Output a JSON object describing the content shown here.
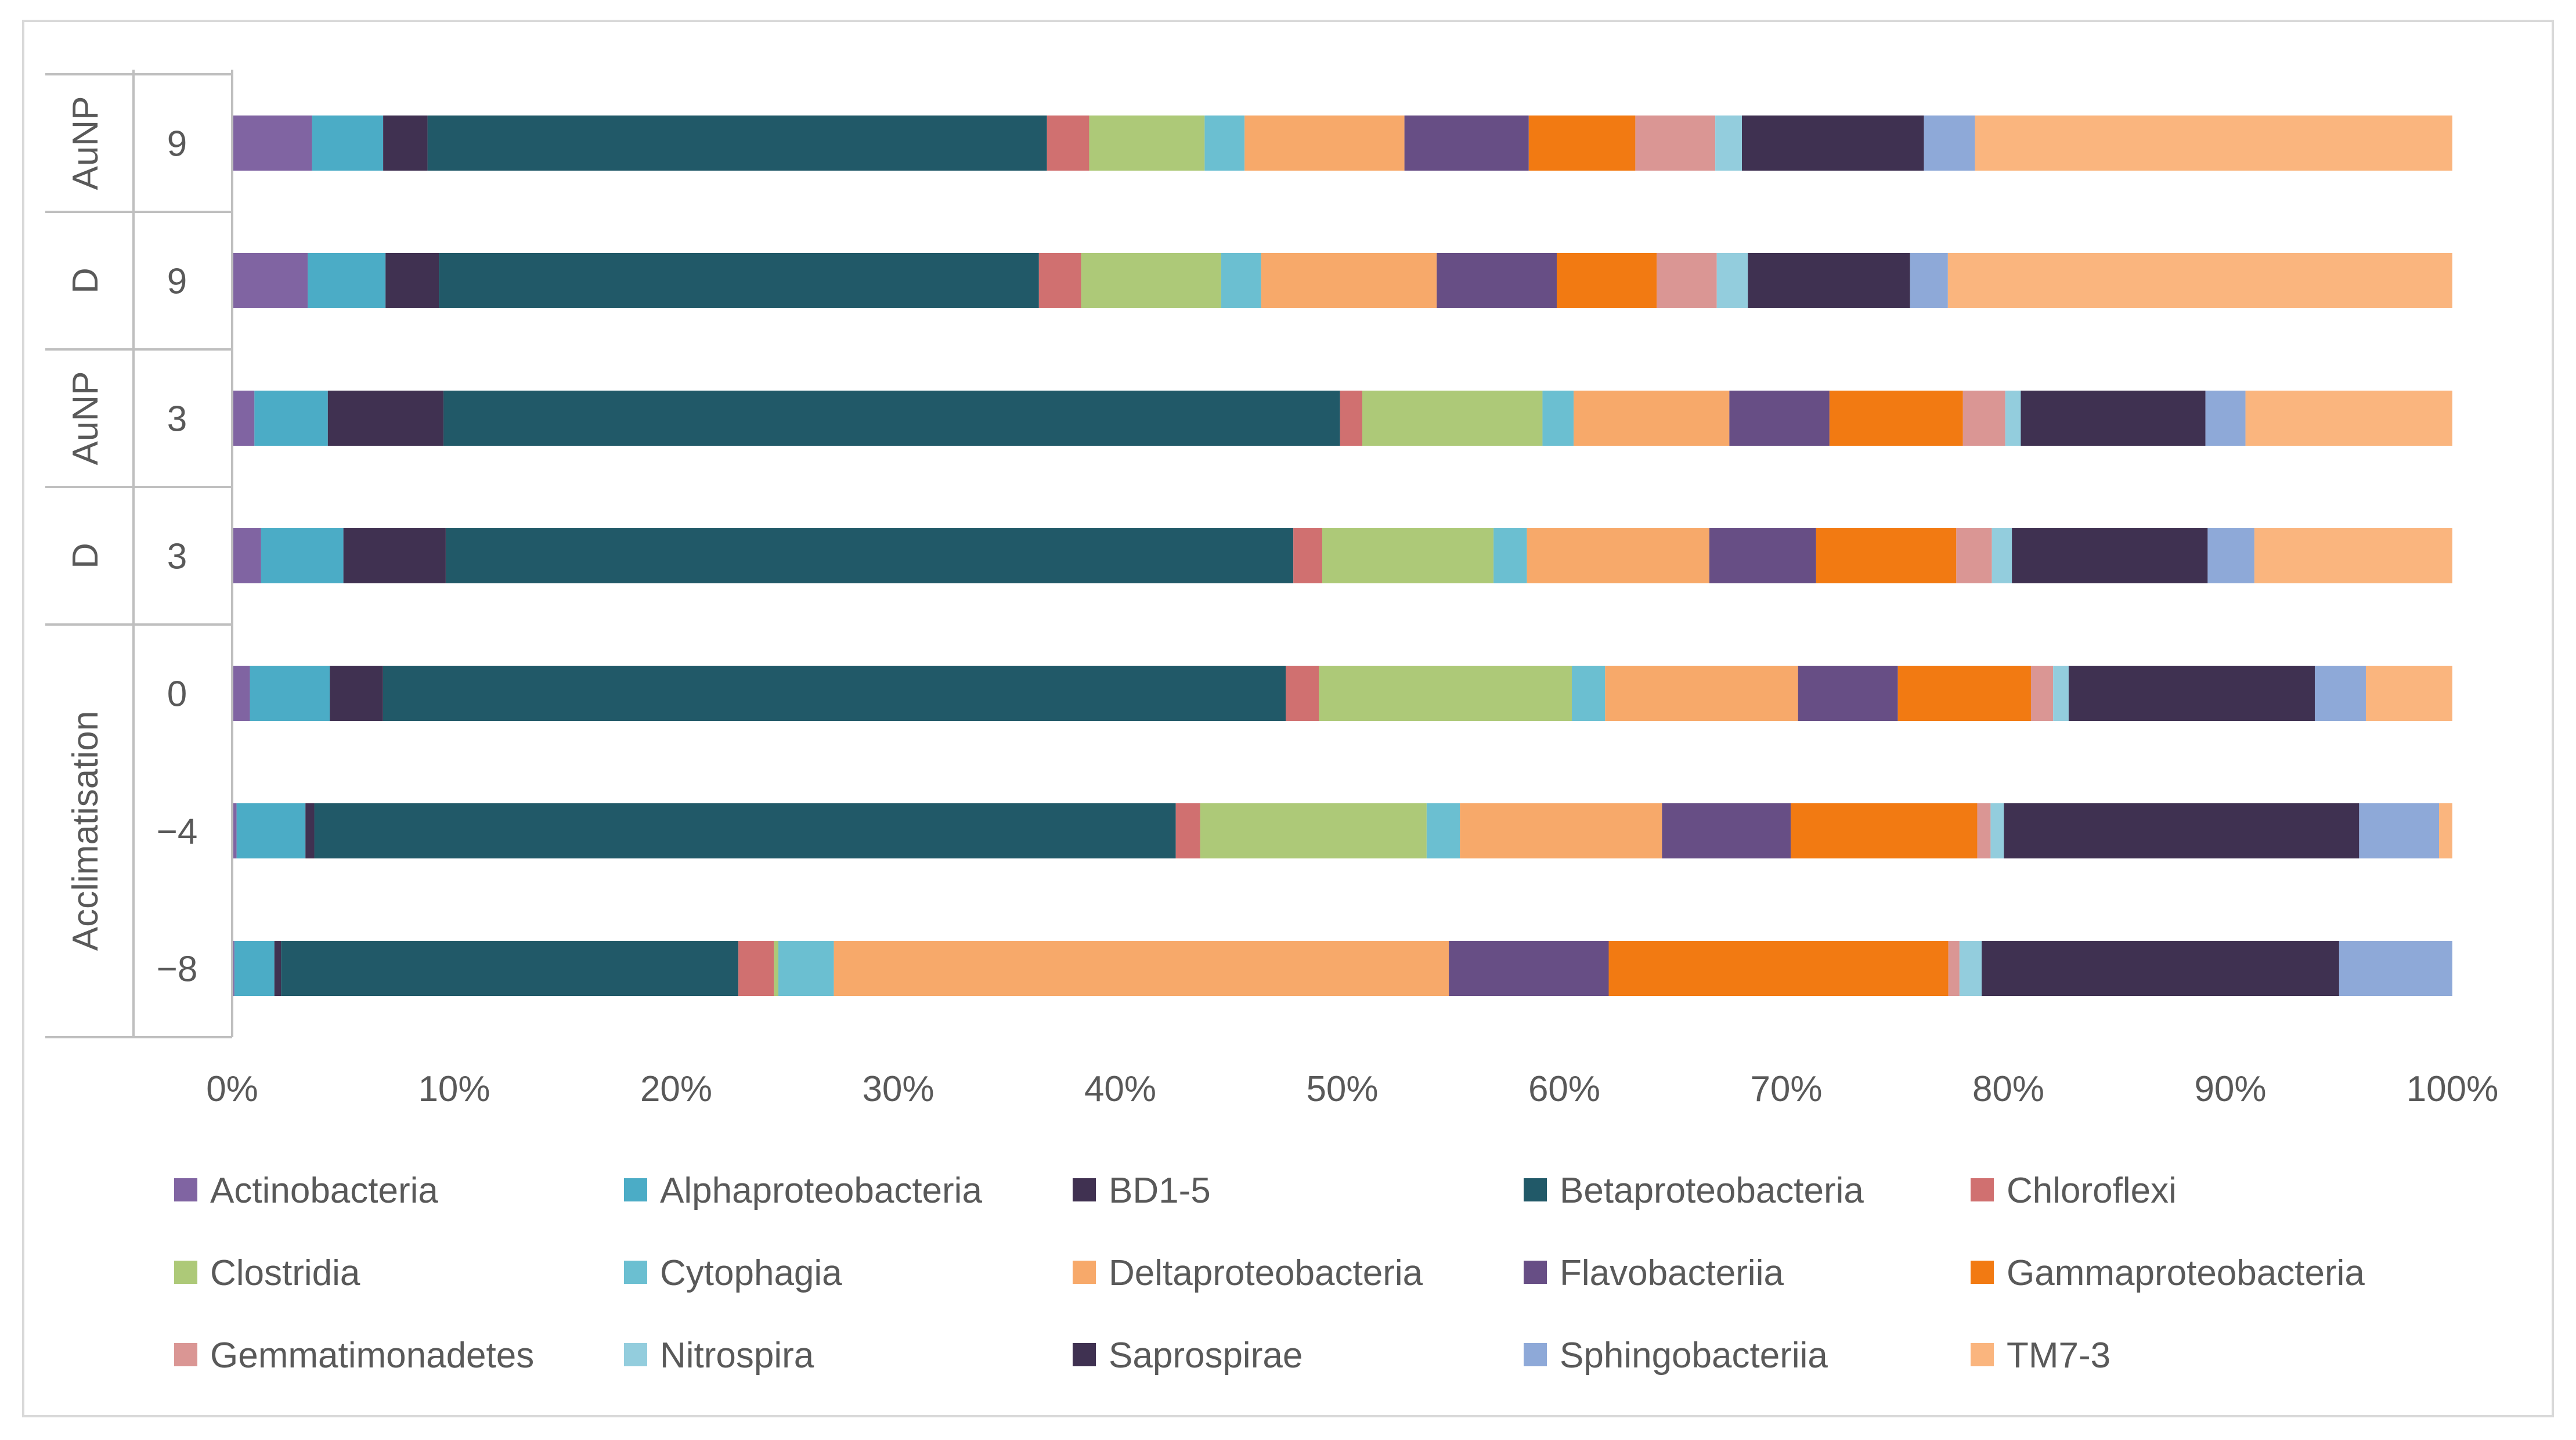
{
  "chart_data": {
    "type": "bar",
    "orientation": "horizontal",
    "stacked": "percent",
    "title": "",
    "xlabel": "",
    "ylabel": "",
    "xlim": [
      0,
      100
    ],
    "x_ticks": [
      "0%",
      "10%",
      "20%",
      "30%",
      "40%",
      "50%",
      "60%",
      "70%",
      "80%",
      "90%",
      "100%"
    ],
    "groups": [
      {
        "label": "AuNP",
        "rows": [
          "9"
        ]
      },
      {
        "label": "D",
        "rows": [
          "9"
        ]
      },
      {
        "label": "AuNP",
        "rows": [
          "3"
        ]
      },
      {
        "label": "D",
        "rows": [
          "3"
        ]
      },
      {
        "label": "Acclimatisation",
        "rows": [
          "0",
          "−4",
          "−8"
        ]
      }
    ],
    "categories": [
      "9",
      "9",
      "3",
      "3",
      "0",
      "−4",
      "−8"
    ],
    "series": [
      {
        "name": "Actinobacteria",
        "color": "#8064a2",
        "values": [
          3.6,
          3.4,
          1.0,
          1.3,
          0.8,
          0.2,
          0.1
        ]
      },
      {
        "name": "Alphaproteobacteria",
        "color": "#4bacc6",
        "values": [
          3.2,
          3.5,
          3.3,
          3.7,
          3.6,
          3.1,
          1.8
        ]
      },
      {
        "name": "BD1-5",
        "color": "#403151",
        "values": [
          2.0,
          2.4,
          5.2,
          4.6,
          2.4,
          0.4,
          0.3
        ]
      },
      {
        "name": "Betaproteobacteria",
        "color": "#215968",
        "values": [
          27.9,
          27.0,
          40.3,
          38.1,
          40.7,
          38.8,
          20.6
        ]
      },
      {
        "name": "Chloroflexi",
        "color": "#d07070",
        "values": [
          1.9,
          1.9,
          1.0,
          1.3,
          1.5,
          1.1,
          1.6
        ]
      },
      {
        "name": "Clostridia",
        "color": "#adc978",
        "values": [
          5.2,
          6.3,
          8.1,
          7.7,
          11.4,
          10.2,
          0.2
        ]
      },
      {
        "name": "Cytophagia",
        "color": "#6bbfd1",
        "values": [
          1.8,
          1.8,
          1.4,
          1.5,
          1.5,
          1.5,
          2.5
        ]
      },
      {
        "name": "Deltaproteobacteria",
        "color": "#f7a96a",
        "values": [
          7.2,
          7.9,
          7.0,
          8.2,
          8.7,
          9.1,
          27.7
        ]
      },
      {
        "name": "Flavobacteriia",
        "color": "#674e85",
        "values": [
          5.6,
          5.4,
          4.5,
          4.8,
          4.5,
          5.8,
          7.2
        ]
      },
      {
        "name": "Gammaproteobacteria",
        "color": "#f27a12",
        "values": [
          4.8,
          4.5,
          6.0,
          6.3,
          6.0,
          8.4,
          15.3
        ]
      },
      {
        "name": "Gemmatimonadetes",
        "color": "#da9694",
        "values": [
          3.6,
          2.7,
          1.9,
          1.6,
          1.0,
          0.6,
          0.5
        ]
      },
      {
        "name": "Nitrospira",
        "color": "#93cddd",
        "values": [
          1.2,
          1.4,
          0.7,
          0.9,
          0.7,
          0.6,
          1.0
        ]
      },
      {
        "name": "Saprospirae",
        "color": "#3f3151",
        "values": [
          8.2,
          7.3,
          8.3,
          8.8,
          11.1,
          16.0,
          16.1
        ]
      },
      {
        "name": "Sphingobacteriia",
        "color": "#8ea9d8",
        "values": [
          2.3,
          1.7,
          1.8,
          2.1,
          2.3,
          3.6,
          5.1
        ]
      },
      {
        "name": "TM7-3",
        "color": "#fab57e",
        "values": [
          21.5,
          22.7,
          9.3,
          8.9,
          3.9,
          0.6,
          0.0
        ]
      }
    ],
    "legend_position": "bottom"
  }
}
